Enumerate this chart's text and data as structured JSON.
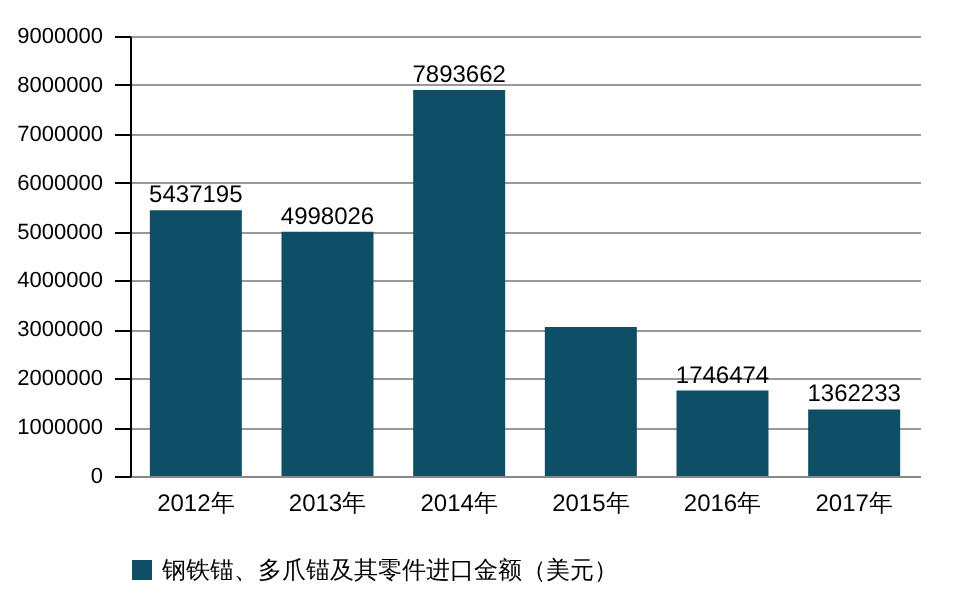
{
  "chart_data": {
    "type": "bar",
    "categories": [
      "2012年",
      "2013年",
      "2014年",
      "2015年",
      "2016年",
      "2017年"
    ],
    "series": [
      {
        "name": "钢铁锚、多爪锚及其零件进口金额（美元）",
        "color": "#0e4f66",
        "values": [
          5437195,
          4998026,
          7893662,
          3050000,
          1746474,
          1362233
        ]
      }
    ],
    "value_labels": [
      "5437195",
      "4998026",
      "7893662",
      null,
      "1746474",
      "1362233"
    ],
    "ylim": [
      0,
      9000000
    ],
    "yticks": [
      0,
      1000000,
      2000000,
      3000000,
      4000000,
      5000000,
      6000000,
      7000000,
      8000000,
      9000000
    ],
    "grid": "y",
    "legend": "bottom"
  }
}
